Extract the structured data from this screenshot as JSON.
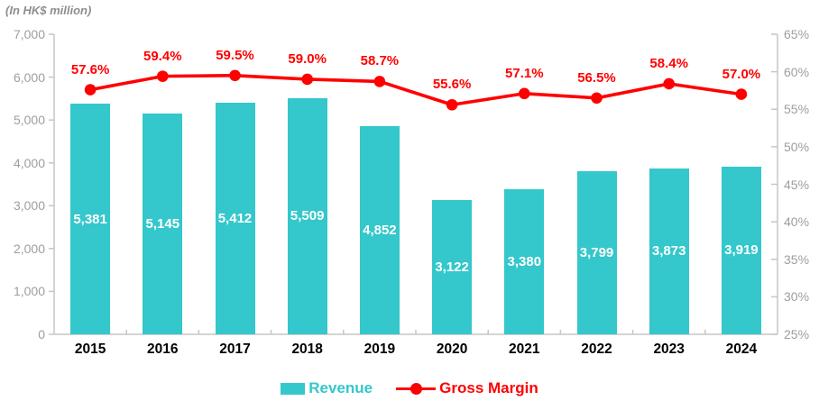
{
  "colors": {
    "bar": "#34c7cb",
    "line": "#ff0000",
    "axis_line": "#c6c6c6",
    "axis_text": "#9e9e9e",
    "bar_label": "#ffffff",
    "year_label": "#000000"
  },
  "legend": {
    "revenue": "Revenue",
    "gross_margin": "Gross Margin"
  },
  "chart_data": {
    "type": "bar",
    "subtype": "bar-line-combo",
    "title": "",
    "unit_label": "(In HK$ million)",
    "categories": [
      "2015",
      "2016",
      "2017",
      "2018",
      "2019",
      "2020",
      "2021",
      "2022",
      "2023",
      "2024"
    ],
    "series": [
      {
        "name": "Revenue",
        "type": "bar",
        "axis": "left",
        "values": [
          5381,
          5145,
          5412,
          5509,
          4852,
          3122,
          3380,
          3799,
          3873,
          3919
        ],
        "labels": [
          "5,381",
          "5,145",
          "5,412",
          "5,509",
          "4,852",
          "3,122",
          "3,380",
          "3,799",
          "3,873",
          "3,919"
        ]
      },
      {
        "name": "Gross Margin",
        "type": "line",
        "axis": "right",
        "values": [
          57.6,
          59.4,
          59.5,
          59.0,
          58.7,
          55.6,
          57.1,
          56.5,
          58.4,
          57.0
        ],
        "labels": [
          "57.6%",
          "59.4%",
          "59.5%",
          "59.0%",
          "58.7%",
          "55.6%",
          "57.1%",
          "56.5%",
          "58.4%",
          "57.0%"
        ]
      }
    ],
    "left_axis": {
      "min": 0,
      "max": 7000,
      "step": 1000,
      "ticks": [
        "0",
        "1,000",
        "2,000",
        "3,000",
        "4,000",
        "5,000",
        "6,000",
        "7,000"
      ]
    },
    "right_axis": {
      "min": 25,
      "max": 65,
      "step": 5,
      "ticks": [
        "25%",
        "30%",
        "35%",
        "40%",
        "45%",
        "50%",
        "55%",
        "60%",
        "65%"
      ]
    },
    "grid": false,
    "legend_position": "bottom"
  }
}
